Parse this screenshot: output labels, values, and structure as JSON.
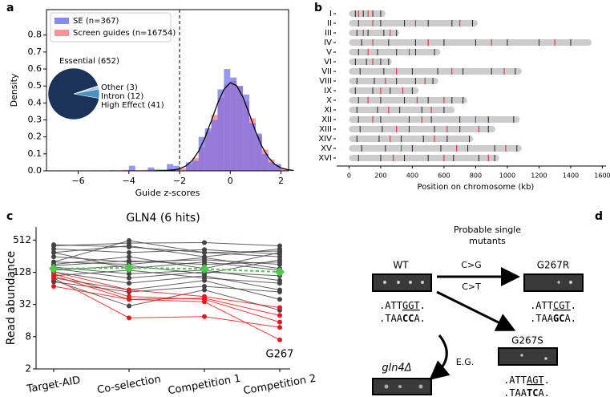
{
  "chart_data": [
    {
      "type": "histogram",
      "label": "a",
      "xlabel": "Guide z-scores",
      "ylabel": "Density",
      "bins": [
        -7,
        -6.75,
        -6.5,
        -6.25,
        -6,
        -5.75,
        -5.5,
        -5.25,
        -5,
        -4.75,
        -4.5,
        -4.25,
        -4,
        -3.75,
        -3.5,
        -3.25,
        -3,
        -2.75,
        -2.5,
        -2.25,
        -2,
        -1.75,
        -1.5,
        -1.25,
        -1,
        -0.75,
        -0.5,
        -0.25,
        0,
        0.25,
        0.5,
        0.75,
        1,
        1.25,
        1.5,
        1.75,
        2,
        2.25,
        2.5
      ],
      "series": [
        {
          "name": "Screen guides (n=16754)",
          "color": "#f47a7a",
          "values": [
            0,
            0.003,
            0,
            0,
            0.002,
            0,
            0.003,
            0,
            0.002,
            0.004,
            0.003,
            0.006,
            0.005,
            0.004,
            0.006,
            0.008,
            0.01,
            0.008,
            0.012,
            0.006,
            0.016,
            0.038,
            0.077,
            0.14,
            0.23,
            0.33,
            0.43,
            0.51,
            0.53,
            0.5,
            0.41,
            0.31,
            0.21,
            0.125,
            0.067,
            0.032,
            0.014,
            0.005
          ]
        },
        {
          "name": "SE (n=367)",
          "color": "#6b6bf0",
          "values": [
            0,
            0,
            0,
            0,
            0,
            0,
            0,
            0,
            0,
            0,
            0,
            0,
            0.03,
            0,
            0,
            0.02,
            0,
            0,
            0.04,
            0.03,
            0,
            0.05,
            0.06,
            0.2,
            0.25,
            0.3,
            0.48,
            0.6,
            0.55,
            0.5,
            0.45,
            0.28,
            0.22,
            0.1,
            0.05,
            0.04,
            0,
            0
          ]
        }
      ],
      "curve": {
        "color": "#000000",
        "x": [
          -3,
          -2.75,
          -2.5,
          -2.25,
          -2,
          -1.75,
          -1.5,
          -1.25,
          -1,
          -0.75,
          -0.5,
          -0.25,
          0,
          0.25,
          0.5,
          0.75,
          1,
          1.25,
          1.5,
          1.75,
          2,
          2.25,
          2.5
        ],
        "y": [
          0,
          0.001,
          0.002,
          0.005,
          0.012,
          0.029,
          0.061,
          0.115,
          0.194,
          0.294,
          0.397,
          0.48,
          0.519,
          0.502,
          0.434,
          0.336,
          0.232,
          0.144,
          0.08,
          0.039,
          0.017,
          0.007,
          0.002
        ]
      },
      "vline": -2,
      "xlim": [
        -7.25,
        2.3
      ],
      "xticks": [
        {
          "value": -6,
          "label": "−6"
        },
        {
          "value": -4,
          "label": "−4"
        },
        {
          "value": -2,
          "label": "−2"
        },
        0,
        2
      ],
      "ylim": [
        0,
        0.95
      ],
      "yticks": [
        {
          "value": 0,
          "label": "0.0"
        },
        0.1,
        0.2,
        0.3,
        0.4,
        0.5,
        0.6,
        0.7,
        0.8
      ],
      "inset": {
        "type": "pie",
        "categories": [
          "Essential (652)",
          "Other (3)",
          "Intron (12)",
          "High Effect (41)"
        ],
        "values": [
          652,
          3,
          12,
          41
        ],
        "colors": [
          "#1b3358",
          "#2e5a87",
          "#a9cce3",
          "#4a90c2"
        ]
      }
    },
    {
      "type": "chromosome",
      "label": "b",
      "xlabel": "Position on chromosome (kb)",
      "categories": [
        "I",
        "II",
        "III",
        "IV",
        "V",
        "VI",
        "VII",
        "VIII",
        "IX",
        "X",
        "XI",
        "XII",
        "XIII",
        "XIV",
        "XV",
        "XVI"
      ],
      "values": [
        230,
        813,
        317,
        1532,
        577,
        270,
        1091,
        563,
        440,
        745,
        667,
        1078,
        924,
        784,
        1091,
        948
      ],
      "color": "#cccccc",
      "hits": [
        {
          "color": "#222222",
          "positions": [
            [
              40,
              90,
              150,
              200
            ],
            [
              60,
              200,
              350,
              500,
              650,
              780
            ],
            [
              50,
              120,
              220,
              300
            ],
            [
              80,
              250,
              420,
              600,
              800,
              1000,
              1200,
              1400
            ],
            [
              60,
              180,
              300,
              420,
              540
            ],
            [
              40,
              110,
              200,
              250
            ],
            [
              70,
              220,
              400,
              560,
              720,
              900,
              1050
            ],
            [
              50,
              160,
              300,
              420,
              530
            ],
            [
              40,
              150,
              260,
              400
            ],
            [
              60,
              200,
              350,
              500,
              650,
              720
            ],
            [
              50,
              180,
              320,
              460,
              600
            ],
            [
              60,
              200,
              380,
              520,
              700,
              880,
              1040
            ],
            [
              70,
              210,
              380,
              540,
              700,
              880
            ],
            [
              50,
              190,
              330,
              470,
              620,
              760
            ],
            [
              80,
              230,
              400,
              580,
              750,
              920,
              1060
            ],
            [
              60,
              200,
              350,
              500,
              660,
              820,
              920
            ]
          ]
        },
        {
          "color": "#d62728",
          "positions": [
            [
              60,
              120
            ],
            [
              150,
              420,
              700
            ],
            [
              90,
              260
            ],
            [
              150,
              500,
              900,
              1300
            ],
            [
              120,
              380
            ],
            [
              150
            ],
            [
              300,
              650,
              980
            ],
            [
              230,
              480
            ],
            [
              200,
              340
            ],
            [
              120,
              430,
              600
            ],
            [
              250,
              520
            ],
            [
              150,
              460,
              800
            ],
            [
              300,
              620,
              820
            ],
            [
              260,
              540
            ],
            [
              330,
              680,
              990
            ],
            [
              280,
              600,
              880
            ]
          ]
        }
      ],
      "xlim": [
        -78,
        1623
      ],
      "xticks": [
        0,
        200,
        400,
        600,
        800,
        1000,
        1200,
        1400,
        1600
      ]
    },
    {
      "type": "line",
      "label": "c",
      "title": "GLN4 (6 hits)",
      "ylabel": "Read abundance",
      "log": true,
      "categories": [
        "Target-AID",
        "Co-selection",
        "Competition 1",
        "Competition 2"
      ],
      "ylim": [
        2,
        900
      ],
      "yticks": [
        2,
        8,
        32,
        128,
        512
      ],
      "series": [
        {
          "color": "#444444",
          "values": [
            400,
            450,
            460,
            400
          ]
        },
        {
          "color": "#444444",
          "values": [
            350,
            300,
            340,
            280
          ]
        },
        {
          "color": "#444444",
          "values": [
            300,
            400,
            250,
            350
          ]
        },
        {
          "color": "#444444",
          "values": [
            250,
            200,
            220,
            180
          ]
        },
        {
          "color": "#444444",
          "values": [
            200,
            180,
            240,
            150
          ]
        },
        {
          "color": "#444444",
          "values": [
            180,
            250,
            150,
            300
          ]
        },
        {
          "color": "#444444",
          "values": [
            160,
            120,
            140,
            90
          ]
        },
        {
          "color": "#444444",
          "values": [
            150,
            100,
            130,
            110
          ]
        },
        {
          "color": "#444444",
          "values": [
            140,
            170,
            120,
            220
          ]
        },
        {
          "color": "#444444",
          "values": [
            130,
            80,
            110,
            60
          ]
        },
        {
          "color": "#444444",
          "values": [
            100,
            60,
            90,
            40
          ]
        },
        {
          "color": "#444444",
          "values": [
            90,
            30,
            60,
            25
          ]
        },
        {
          "color": "#444444",
          "values": [
            200,
            500,
            300,
            250
          ]
        },
        {
          "color": "#444444",
          "values": [
            300,
            150,
            200,
            140
          ]
        },
        {
          "color": "#444444",
          "values": [
            420,
            380,
            300,
            320
          ]
        },
        {
          "color": "#444444",
          "values": [
            110,
            140,
            100,
            80
          ]
        },
        {
          "color": "#444444",
          "values": [
            85,
            55,
            70,
            55
          ]
        },
        {
          "color": "#444444",
          "values": [
            170,
            210,
            180,
            200
          ]
        },
        {
          "color": "#e31a1c",
          "values": [
            110,
            40,
            42,
            20
          ]
        },
        {
          "color": "#e31a1c",
          "values": [
            120,
            45,
            40,
            15
          ]
        },
        {
          "color": "#e31a1c",
          "values": [
            100,
            18,
            19,
            12
          ]
        },
        {
          "color": "#e31a1c",
          "values": [
            70,
            40,
            36,
            7
          ]
        },
        {
          "color": "#e31a1c",
          "values": [
            130,
            60,
            45,
            28
          ]
        },
        {
          "color": "#4cc94c",
          "marker": "diamond",
          "values": [
            150,
            155,
            148,
            130
          ]
        }
      ],
      "annotation": "G267"
    }
  ],
  "diagram": {
    "label": "d",
    "heading": [
      "Probable single",
      "mutants"
    ],
    "wt": {
      "name": "WT",
      "top": [
        ".ATT",
        "GGT",
        "."
      ],
      "bottom": [
        ".TAA",
        "CC",
        "A."
      ]
    },
    "mutant_r": {
      "name": "G267R",
      "top": [
        ".ATT",
        "CGT",
        "."
      ],
      "bottom": [
        ".TAA",
        "GC",
        "A."
      ]
    },
    "mutant_s": {
      "name": "G267S",
      "top": [
        ".ATT",
        "AGT",
        "."
      ],
      "bottom": [
        ".TAA",
        "TC",
        "A."
      ]
    },
    "deletion": {
      "name": "gln4Δ"
    },
    "arrows": [
      "C>G",
      "C>T",
      "E.G."
    ]
  }
}
